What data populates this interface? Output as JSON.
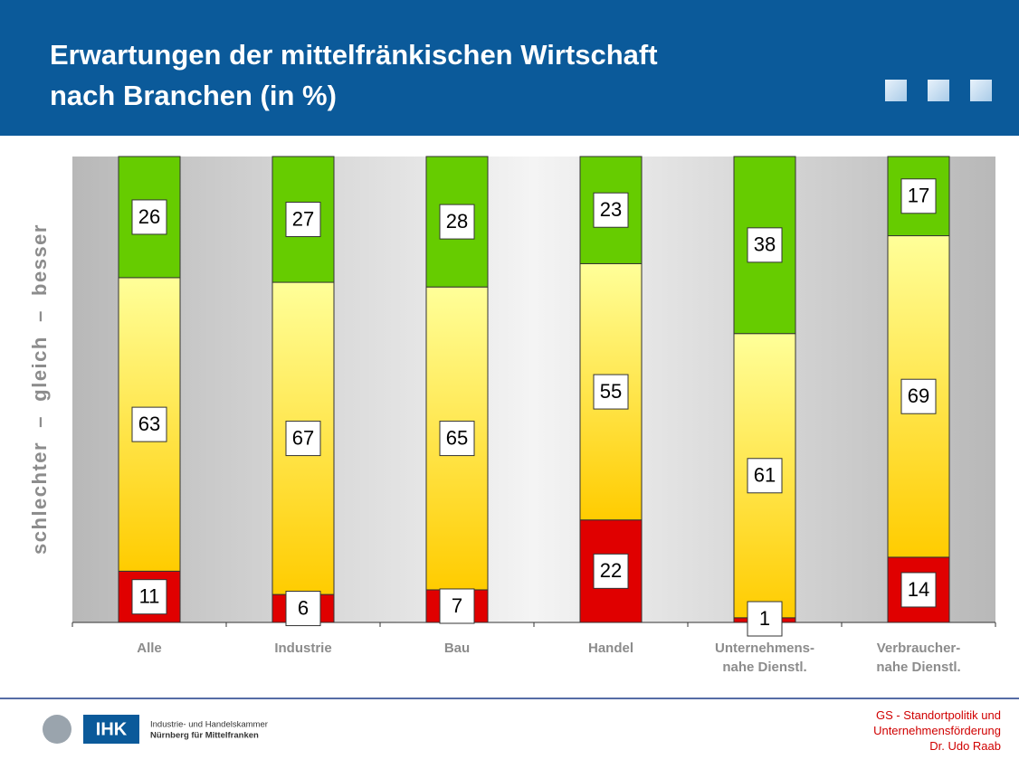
{
  "chart_data": {
    "type": "stacked_bar",
    "title": [
      "Erwartungen der mittelfränkischen Wirtschaft",
      "nach Branchen (in %)"
    ],
    "y_label": "schlechter  –  gleich  –  besser",
    "categories": [
      "Alle",
      "Industrie",
      "Bau",
      "Handel",
      "Unternehmens-\nnahe Dienstl.",
      "Verbraucher-\nnahe Dienstl."
    ],
    "series": [
      {
        "color": "#e00000",
        "values": [
          11,
          6,
          7,
          22,
          1,
          14
        ]
      },
      {
        "color": "#ffcc00",
        "values": [
          63,
          67,
          65,
          55,
          61,
          69
        ]
      },
      {
        "color": "#66cc00",
        "values": [
          26,
          27,
          28,
          23,
          38,
          17
        ]
      }
    ],
    "ylim": [
      0,
      100
    ]
  },
  "footer": {
    "logo": "IHK",
    "org": [
      "Industrie- und Handelskammer",
      "Nürnberg für Mittelfranken"
    ],
    "contact": [
      "GS - Standortpolitik und",
      "Unternehmensförderung",
      "Dr. Udo Raab"
    ]
  }
}
